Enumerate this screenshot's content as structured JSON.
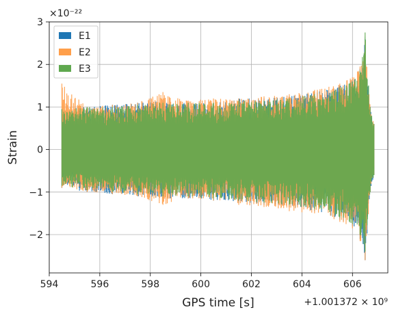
{
  "chart_data": {
    "type": "line",
    "xlabel": "GPS time [s]",
    "ylabel": "Strain",
    "x_offset_label": "+1.001372 × 10⁹",
    "y_scale_label": "×10⁻²²",
    "xlim": [
      594.0,
      607.4
    ],
    "ylim": [
      -2.9,
      3.0
    ],
    "x_ticks": [
      594,
      596,
      598,
      600,
      602,
      604,
      606
    ],
    "x_tick_labels": [
      "594",
      "596",
      "598",
      "600",
      "602",
      "604",
      "606"
    ],
    "y_ticks": [
      -2,
      -1,
      0,
      1,
      2,
      3
    ],
    "y_tick_labels": [
      "−2",
      "−1",
      "0",
      "1",
      "2",
      "3"
    ],
    "grid": true,
    "legend_position": "top-left",
    "series": [
      {
        "name": "E1",
        "color": "#1f77b4",
        "x": [
          594.5,
          595.5,
          596.5,
          597.5,
          598.5,
          599.5,
          600.5,
          601.5,
          602.5,
          603.5,
          604.5,
          605.5,
          606.0,
          606.3,
          606.5,
          606.7,
          606.85
        ],
        "y_max": [
          0.95,
          1.0,
          1.05,
          1.1,
          1.15,
          1.1,
          1.1,
          1.2,
          1.2,
          1.25,
          1.35,
          1.5,
          1.65,
          1.9,
          2.6,
          1.0,
          0.6
        ],
        "y_min": [
          -0.9,
          -1.0,
          -1.05,
          -1.1,
          -1.15,
          -1.15,
          -1.2,
          -1.25,
          -1.3,
          -1.35,
          -1.45,
          -1.65,
          -1.8,
          -2.1,
          -2.6,
          -1.0,
          -0.6
        ]
      },
      {
        "name": "E2",
        "color": "#ff9f4a",
        "x": [
          594.5,
          595.5,
          596.5,
          597.5,
          598.5,
          599.5,
          600.5,
          601.5,
          602.5,
          603.5,
          604.5,
          605.5,
          606.0,
          606.3,
          606.5,
          606.7,
          606.85
        ],
        "y_max": [
          1.55,
          1.0,
          1.05,
          1.1,
          1.35,
          1.15,
          1.2,
          1.2,
          1.25,
          1.3,
          1.4,
          1.55,
          1.7,
          1.95,
          2.55,
          1.0,
          0.6
        ],
        "y_min": [
          -0.9,
          -1.0,
          -1.05,
          -1.1,
          -1.3,
          -1.15,
          -1.2,
          -1.3,
          -1.35,
          -1.45,
          -1.5,
          -1.7,
          -1.85,
          -2.15,
          -2.6,
          -1.0,
          -0.6
        ]
      },
      {
        "name": "E3",
        "color": "#5fa84f",
        "x": [
          594.5,
          595.5,
          596.5,
          597.5,
          598.5,
          599.5,
          600.5,
          601.5,
          602.5,
          603.5,
          604.5,
          605.5,
          606.0,
          606.3,
          606.5,
          606.7,
          606.85
        ],
        "y_max": [
          0.95,
          1.0,
          1.0,
          1.05,
          1.1,
          1.1,
          1.1,
          1.15,
          1.15,
          1.2,
          1.3,
          1.45,
          1.6,
          1.85,
          2.75,
          1.0,
          0.6
        ],
        "y_min": [
          -0.85,
          -0.95,
          -1.0,
          -1.05,
          -1.1,
          -1.1,
          -1.15,
          -1.2,
          -1.25,
          -1.3,
          -1.4,
          -1.6,
          -1.75,
          -2.0,
          -2.4,
          -1.0,
          -0.6
        ]
      }
    ]
  }
}
